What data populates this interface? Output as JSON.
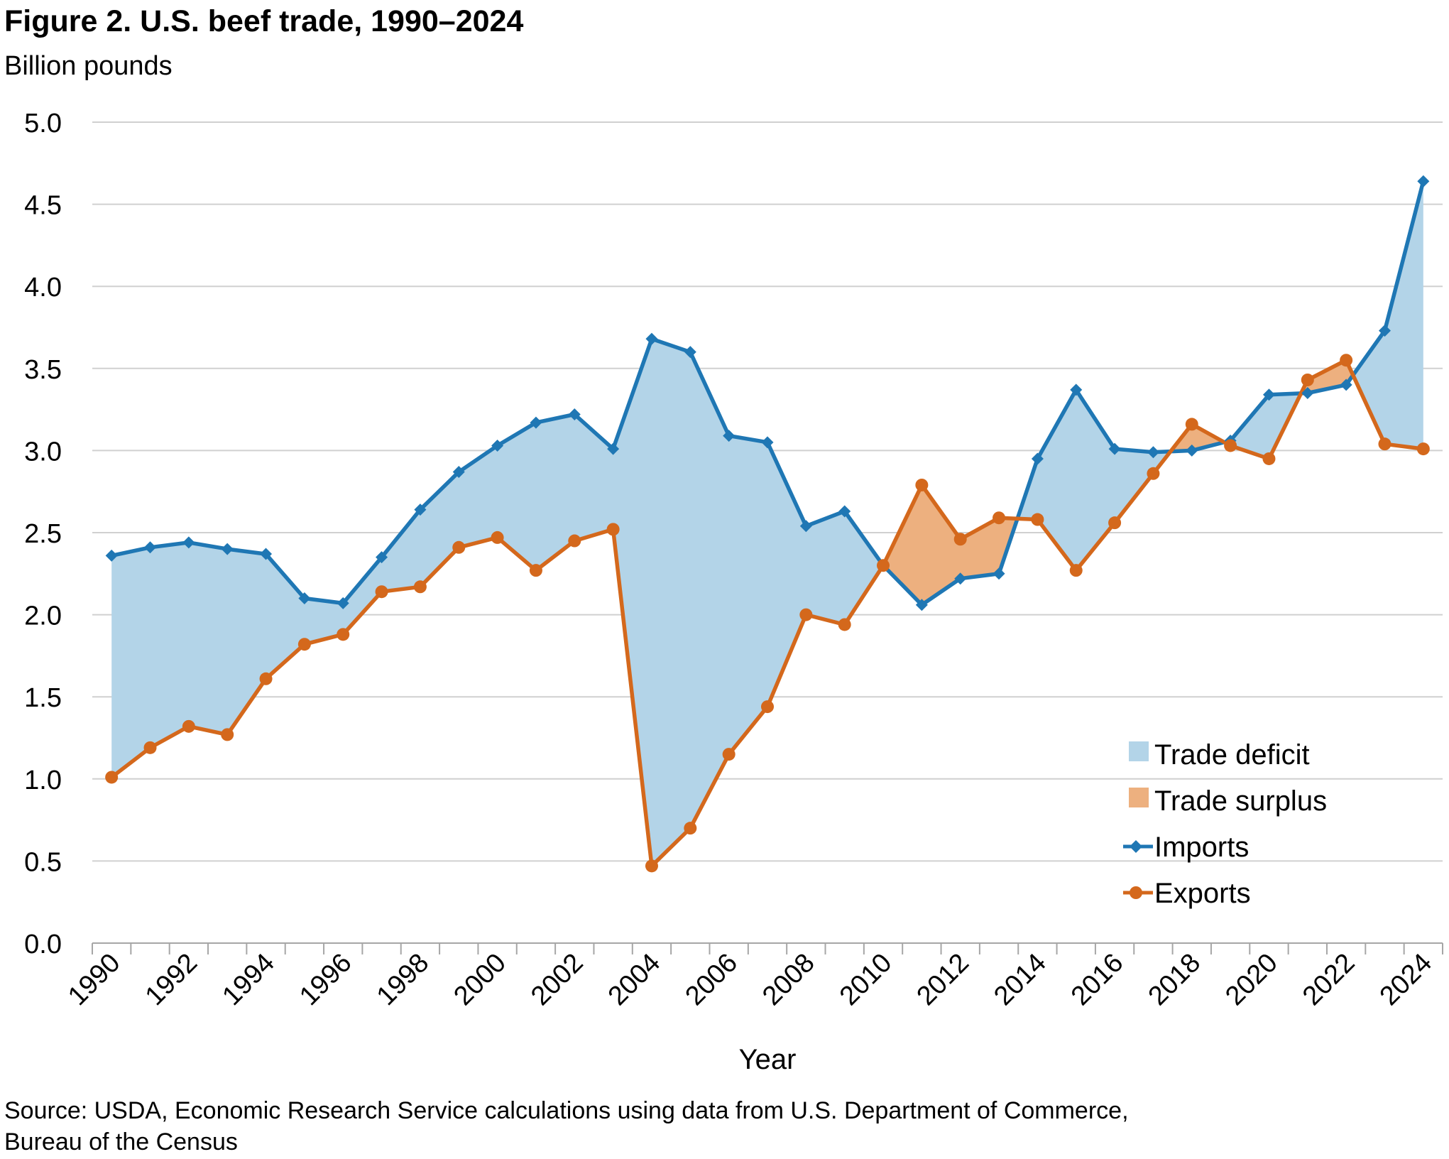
{
  "figure": {
    "title": "Figure 2. U.S. beef trade, 1990–2024",
    "unit_label": "Billion pounds",
    "source_line1": "Source: USDA, Economic Research Service calculations using data from U.S. Department of Commerce,",
    "source_line2": "Bureau of the Census"
  },
  "colors": {
    "imports": "#1f77b4",
    "exports": "#d4681c",
    "deficit_fill": "#b3d4e8",
    "surplus_fill": "#edb07f",
    "grid": "#d0d0d0",
    "axis": "#a6a6a6"
  },
  "chart_data": {
    "type": "line",
    "title": "Figure 2. U.S. beef trade, 1990–2024",
    "xlabel": "Year",
    "ylabel": "Billion pounds",
    "ylim": [
      0,
      5
    ],
    "y_ticks": [
      "0.0",
      "0.5",
      "1.0",
      "1.5",
      "2.0",
      "2.5",
      "3.0",
      "3.5",
      "4.0",
      "4.5",
      "5.0"
    ],
    "x_tick_labels": [
      "1990",
      "1992",
      "1994",
      "1996",
      "1998",
      "2000",
      "2002",
      "2004",
      "2006",
      "2008",
      "2010",
      "2012",
      "2014",
      "2016",
      "2018",
      "2020",
      "2022",
      "2024"
    ],
    "grid": true,
    "legend_position": "bottom-right",
    "x": [
      1990,
      1991,
      1992,
      1993,
      1994,
      1995,
      1996,
      1997,
      1998,
      1999,
      2000,
      2001,
      2002,
      2003,
      2004,
      2005,
      2006,
      2007,
      2008,
      2009,
      2010,
      2011,
      2012,
      2013,
      2014,
      2015,
      2016,
      2017,
      2018,
      2019,
      2020,
      2021,
      2022,
      2023,
      2024
    ],
    "series": [
      {
        "name": "Imports",
        "marker": "diamond",
        "values": [
          2.36,
          2.41,
          2.44,
          2.4,
          2.37,
          2.1,
          2.07,
          2.35,
          2.64,
          2.87,
          3.03,
          3.17,
          3.22,
          3.01,
          3.68,
          3.6,
          3.09,
          3.05,
          2.54,
          2.63,
          2.3,
          2.06,
          2.22,
          2.25,
          2.95,
          3.37,
          3.01,
          2.99,
          3.0,
          3.06,
          3.34,
          3.35,
          3.4,
          3.73,
          4.64
        ]
      },
      {
        "name": "Exports",
        "marker": "circle",
        "values": [
          1.01,
          1.19,
          1.32,
          1.27,
          1.61,
          1.82,
          1.88,
          2.14,
          2.17,
          2.41,
          2.47,
          2.27,
          2.45,
          2.52,
          0.47,
          0.7,
          1.15,
          1.44,
          2.0,
          1.94,
          2.3,
          2.79,
          2.46,
          2.59,
          2.58,
          2.27,
          2.56,
          2.86,
          3.16,
          3.03,
          2.95,
          3.43,
          3.55,
          3.04,
          3.01
        ]
      }
    ],
    "area_legend": [
      "Trade deficit",
      "Trade surplus"
    ]
  }
}
